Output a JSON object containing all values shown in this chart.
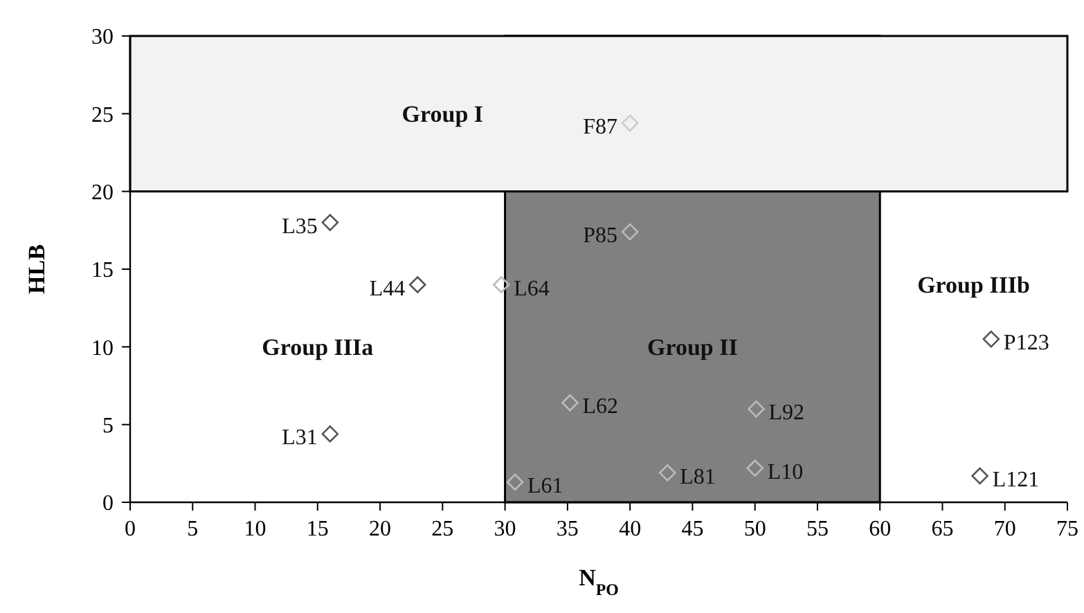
{
  "chart_data": {
    "type": "scatter",
    "xlabel": "N$_{PO}$",
    "ylabel": "HLB",
    "xlim": [
      0,
      75
    ],
    "ylim": [
      0,
      30
    ],
    "xticks": [
      0,
      5,
      10,
      15,
      20,
      25,
      30,
      35,
      40,
      45,
      50,
      55,
      60,
      65,
      70,
      75
    ],
    "yticks": [
      0,
      5,
      10,
      15,
      20,
      25,
      30
    ],
    "marker": "diamond",
    "bands": [
      {
        "axis": "x",
        "from": 30,
        "to": 60,
        "label": "Group II",
        "color": "#808080"
      },
      {
        "axis": "y",
        "from": 20,
        "to": 30,
        "label": "Group I",
        "color": "#f2f2f2"
      }
    ],
    "series": [
      {
        "x": [
          16,
          23,
          29.7,
          16,
          40,
          40,
          35.2,
          50.1,
          50,
          43,
          30.8,
          68.9,
          68
        ],
        "values": [
          18,
          14,
          14,
          4.4,
          24.4,
          17.4,
          6.4,
          6,
          2.2,
          1.9,
          1.3,
          10.5,
          1.7
        ],
        "colors": [
          "#555555",
          "#555555",
          "#bbbbbb",
          "#555555",
          "#cccccc",
          "#bbbbbb",
          "#bbbbbb",
          "#bbbbbb",
          "#bbbbbb",
          "#bbbbbb",
          "#bbbbbb",
          "#555555",
          "#555555"
        ]
      }
    ],
    "annotations": [
      {
        "text": "L35",
        "x": 16,
        "y": 18
      },
      {
        "text": "L44",
        "x": 23,
        "y": 14
      },
      {
        "text": "L64",
        "x": 29.7,
        "y": 14
      },
      {
        "text": "L31",
        "x": 16,
        "y": 4.4
      },
      {
        "text": "F87",
        "x": 40,
        "y": 24.4
      },
      {
        "text": "P85",
        "x": 40,
        "y": 17.4
      },
      {
        "text": "L62",
        "x": 35.2,
        "y": 6.4
      },
      {
        "text": "L92",
        "x": 50.1,
        "y": 6
      },
      {
        "text": "L10",
        "x": 50,
        "y": 2.2
      },
      {
        "text": "L81",
        "x": 43,
        "y": 1.9
      },
      {
        "text": "L61",
        "x": 30.8,
        "y": 1.3
      },
      {
        "text": "P123",
        "x": 68.9,
        "y": 10.5
      },
      {
        "text": "L121",
        "x": 68,
        "y": 1.7
      },
      "Group IIIa",
      "Group IIIb"
    ]
  }
}
